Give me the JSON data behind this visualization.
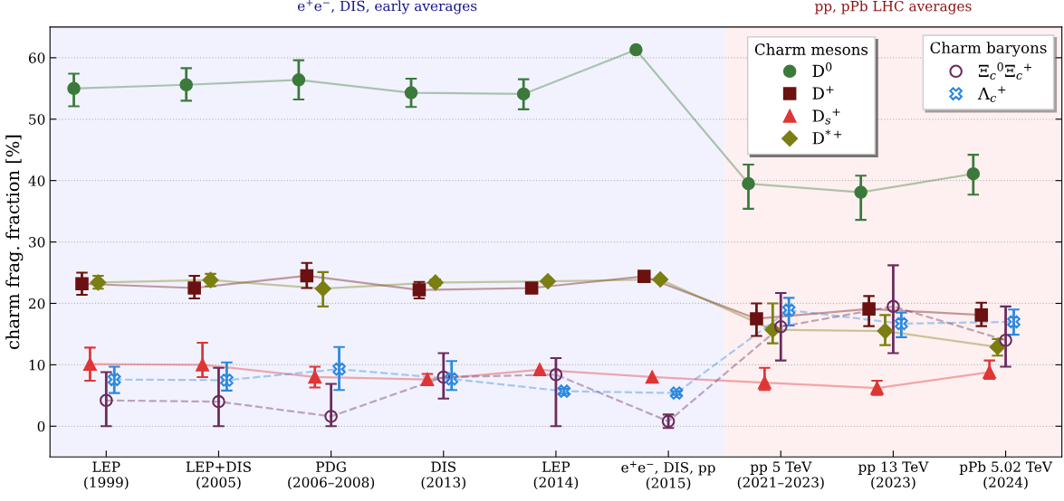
{
  "chart_data": {
    "type": "line",
    "ylabel": "charm frag. fraction [%]",
    "categories": [
      "LEP\n(1999)",
      "LEP+DIS\n(2005)",
      "PDG\n(2006–2008)",
      "DIS\n(2013)",
      "LEP\n(2014)",
      "e$^{+}$e$^{−}$, DIS, pp\n(2015)",
      "pp 5 TeV\n(2021–2023)",
      "pp 13 TeV\n(2023)",
      "pPb 5.02 TeV\n(2024)"
    ],
    "ylim": [
      -5,
      65
    ],
    "yticks": [
      0,
      10,
      20,
      30,
      40,
      50,
      60
    ],
    "grid": "y",
    "legend": "top right",
    "legend_title": [
      "Charm mesons",
      "Charm baryons"
    ],
    "bands": [
      {
        "axis": "x",
        "from": "LEP\n(1999)",
        "to": "e$^{+}$e$^{−}$, DIS, pp\n(2015)",
        "label": "e$^{+}$e$^{−}$, DIS, early averages",
        "color": "#f2f2fe"
      },
      {
        "axis": "x",
        "from": "pp 5 TeV\n(2021–2023)",
        "to": "pPb 5.02 TeV\n(2024)",
        "label": "pp, pPb LHC averages",
        "color": "#fef0f0"
      }
    ],
    "series": [
      {
        "name": "D$^{0}$",
        "color": "#3b7a3b",
        "marker": "circle",
        "line_style": "solid",
        "values": [
          55.0,
          55.6,
          56.4,
          54.3,
          54.1,
          61.3,
          39.5,
          38.1,
          41.1
        ],
        "errors": [
          [
            52.1,
            57.4
          ],
          [
            53.0,
            58.3
          ],
          [
            53.2,
            59.6
          ],
          [
            52.0,
            56.6
          ],
          [
            51.6,
            56.5
          ],
          null,
          [
            35.4,
            42.6
          ],
          [
            33.6,
            40.8
          ],
          [
            37.7,
            44.2
          ]
        ]
      },
      {
        "name": "D$^{+}$",
        "color": "#6b1111",
        "marker": "square",
        "line_style": "solid",
        "values": [
          23.2,
          22.5,
          24.5,
          22.2,
          22.5,
          24.4,
          17.5,
          19.1,
          18.1
        ],
        "errors": [
          [
            21.4,
            25.0
          ],
          [
            20.8,
            24.5
          ],
          [
            22.5,
            26.6
          ],
          [
            20.8,
            23.5
          ],
          [
            21.9,
            23.1
          ],
          null,
          [
            14.7,
            20.0
          ],
          [
            16.3,
            21.2
          ],
          [
            16.3,
            20.1
          ]
        ]
      },
      {
        "name": "D$_{s}$$^{+}$",
        "color": "#e03535",
        "marker": "triangle",
        "line_style": "solid",
        "values": [
          10.1,
          10.0,
          8.0,
          7.6,
          9.2,
          8.0,
          7.1,
          6.2,
          8.8
        ],
        "errors": [
          [
            7.4,
            12.8
          ],
          [
            8.0,
            13.6
          ],
          [
            6.3,
            9.7
          ],
          [
            6.9,
            8.5
          ],
          null,
          null,
          [
            5.9,
            9.5
          ],
          [
            5.1,
            7.4
          ],
          [
            7.7,
            10.7
          ]
        ]
      },
      {
        "name": "D$^{*+}$",
        "color": "#7b7f12",
        "marker": "diamond",
        "line_style": "solid",
        "values": [
          23.4,
          23.8,
          22.4,
          23.4,
          23.6,
          23.9,
          15.7,
          15.5,
          12.9
        ],
        "errors": [
          [
            22.4,
            24.5
          ],
          [
            22.8,
            24.8
          ],
          [
            19.5,
            25.1
          ],
          [
            22.9,
            23.9
          ],
          null,
          [
            23.6,
            24.2
          ],
          [
            13.5,
            20.0
          ],
          [
            13.2,
            18.1
          ],
          [
            11.5,
            14.2
          ]
        ]
      },
      {
        "name": "Ξ$_{c}$$^{0}$Ξ$_{c}$$^{+}$",
        "color": "#6b2b5e",
        "marker": "circle",
        "line_style": "dashed",
        "values": [
          4.2,
          4.0,
          1.6,
          8.0,
          8.4,
          0.8,
          16.2,
          19.5,
          14.0
        ],
        "errors": [
          [
            0,
            8.8
          ],
          [
            0,
            9.5
          ],
          [
            0,
            6.9
          ],
          [
            4.5,
            11.9
          ],
          [
            0,
            11.1
          ],
          [
            -0.3,
            1.9
          ],
          [
            10.7,
            21.7
          ],
          [
            11.9,
            26.2
          ],
          [
            9.7,
            19.5
          ]
        ]
      },
      {
        "name": "Λ$_{c}$$^{+}$",
        "color": "#2b88e0",
        "marker": "cross",
        "line_style": "dashed",
        "values": [
          7.6,
          7.5,
          9.3,
          7.7,
          5.7,
          5.4,
          18.9,
          16.7,
          17.0
        ],
        "errors": [
          [
            5.4,
            9.7
          ],
          [
            5.8,
            10.4
          ],
          [
            5.9,
            12.9
          ],
          [
            5.9,
            10.6
          ],
          [
            5.3,
            6.1
          ],
          [
            5.1,
            5.7
          ],
          [
            16.4,
            20.9
          ],
          [
            14.5,
            18.5
          ],
          [
            14.9,
            19.0
          ]
        ]
      }
    ]
  }
}
